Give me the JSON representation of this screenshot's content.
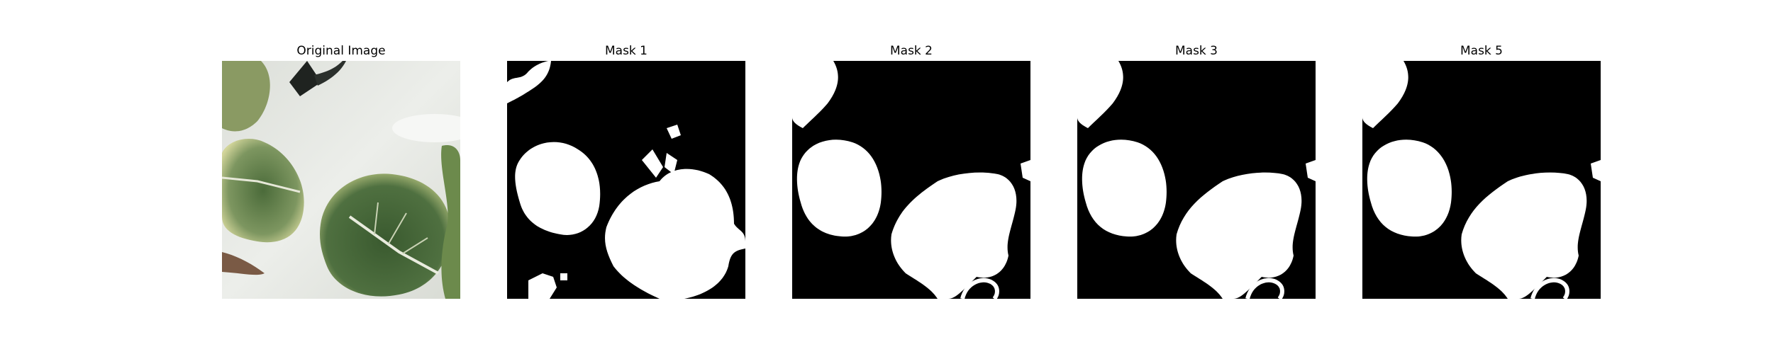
{
  "figure": {
    "panels": [
      {
        "title": "Original Image",
        "kind": "photo"
      },
      {
        "title": "Mask 1",
        "kind": "mask"
      },
      {
        "title": "Mask 2",
        "kind": "mask"
      },
      {
        "title": "Mask 3",
        "kind": "mask"
      },
      {
        "title": "Mask 5",
        "kind": "mask"
      }
    ]
  },
  "colors": {
    "mask_background": "#000000",
    "mask_foreground": "#ffffff",
    "tray": "#e6e8e4",
    "leaf_dark": "#3f5f33",
    "leaf_light": "#c9d08a"
  }
}
